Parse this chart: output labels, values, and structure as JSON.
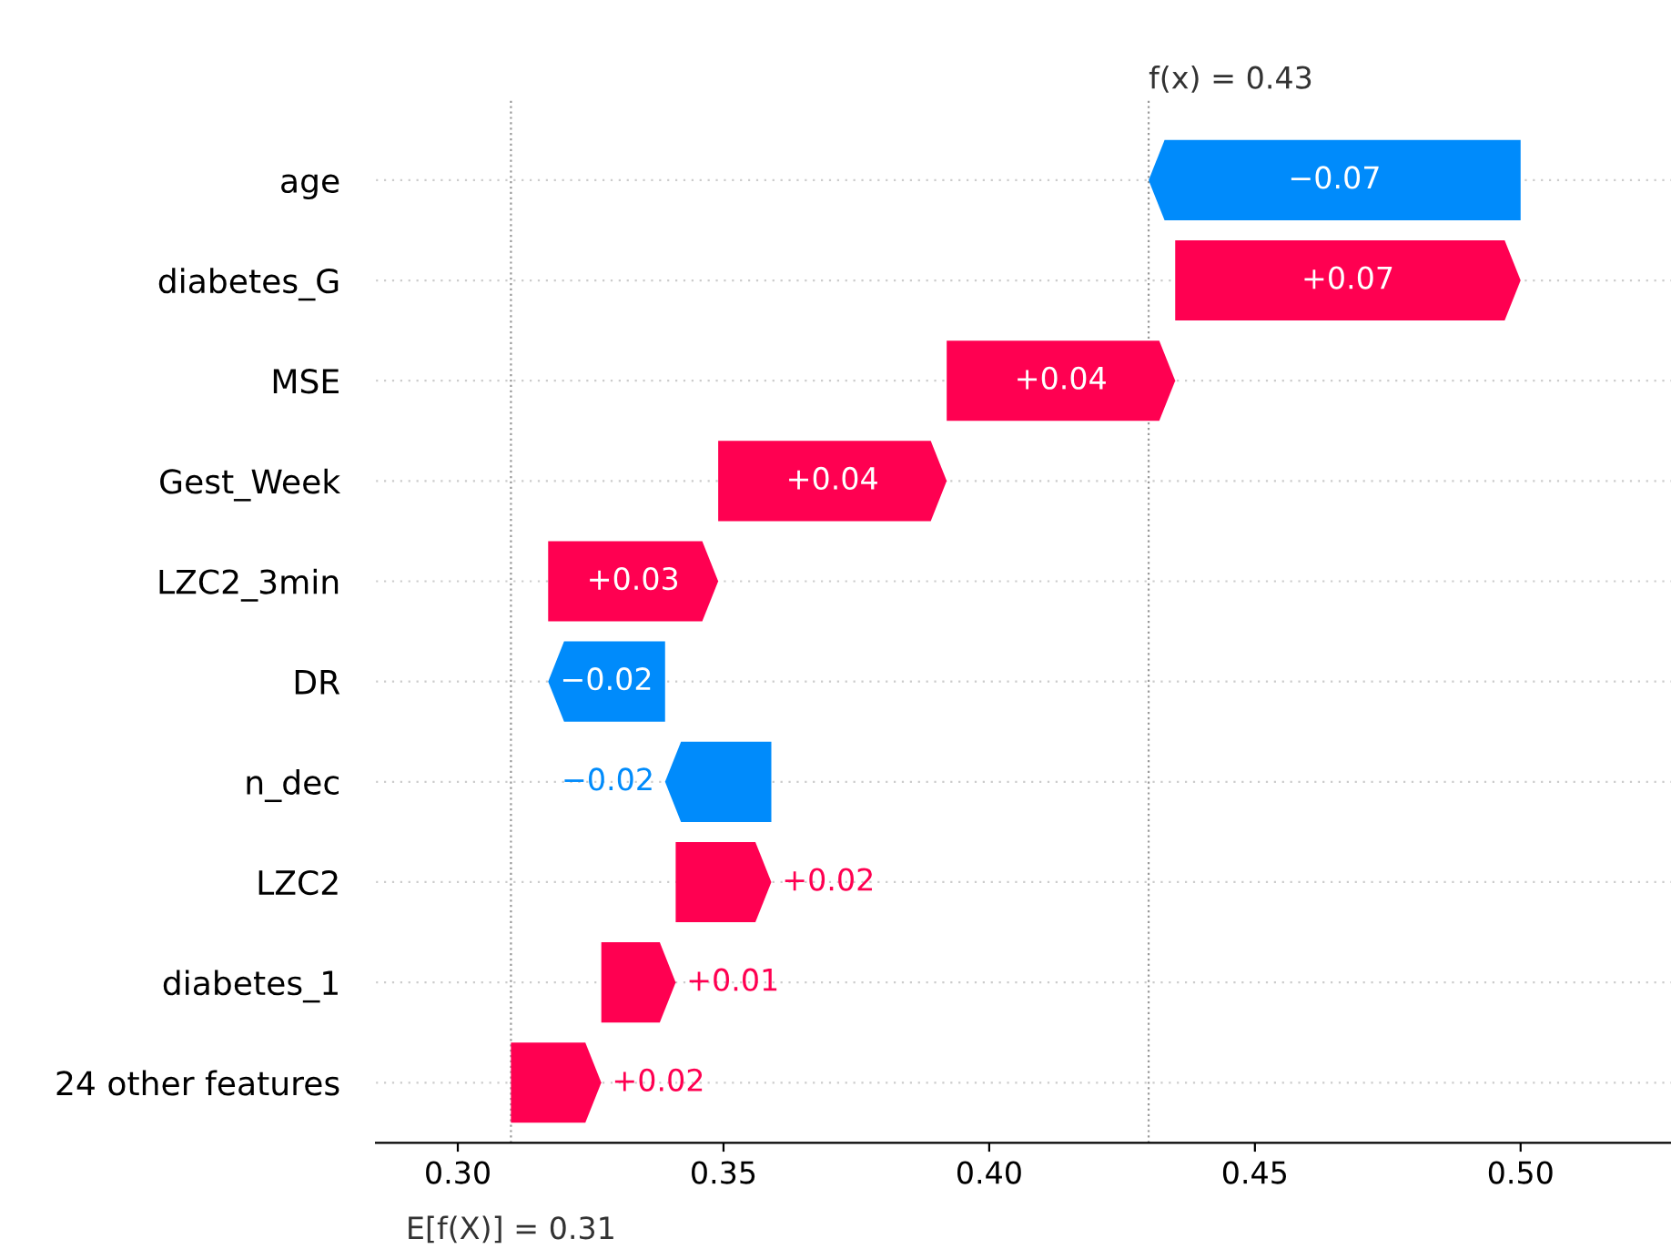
{
  "chart_data": {
    "type": "bar",
    "orientation": "horizontal",
    "categories": [
      "age",
      "diabetes_G",
      "MSE",
      "Gest_Week",
      "LZC2_3min",
      "DR",
      "n_dec",
      "LZC2",
      "diabetes_1",
      "24 other features"
    ],
    "base": [
      0.5,
      0.435,
      0.392,
      0.349,
      0.317,
      0.339,
      0.359,
      0.341,
      0.327,
      0.31
    ],
    "values": [
      -0.07,
      0.065,
      0.043,
      0.043,
      0.032,
      -0.022,
      -0.02,
      0.018,
      0.014,
      0.017
    ],
    "value_labels": [
      "−0.07",
      "+0.07",
      "+0.04",
      "+0.04",
      "+0.03",
      "−0.02",
      "−0.02",
      "+0.02",
      "+0.01",
      "+0.02"
    ],
    "colors": [
      "#008bfb",
      "#ff0051",
      "#ff0051",
      "#ff0051",
      "#ff0051",
      "#008bfb",
      "#008bfb",
      "#ff0051",
      "#ff0051",
      "#ff0051"
    ],
    "xlim": [
      0.2846,
      0.5283
    ],
    "xticks": [
      {
        "value": 0.3,
        "label": "0.30"
      },
      0.35,
      {
        "value": 0.4,
        "label": "0.40"
      },
      0.45,
      {
        "value": 0.5,
        "label": "0.50"
      }
    ],
    "ref_lines": [
      {
        "axis": "x",
        "value": 0.43,
        "label": "f(x) = 0.43",
        "color": "#999999",
        "line_style": "dotted"
      },
      {
        "axis": "x",
        "value": 0.31,
        "label": "E[f(X)] = 0.31",
        "color": "#999999",
        "line_style": "dotted"
      }
    ],
    "grid": "y"
  }
}
